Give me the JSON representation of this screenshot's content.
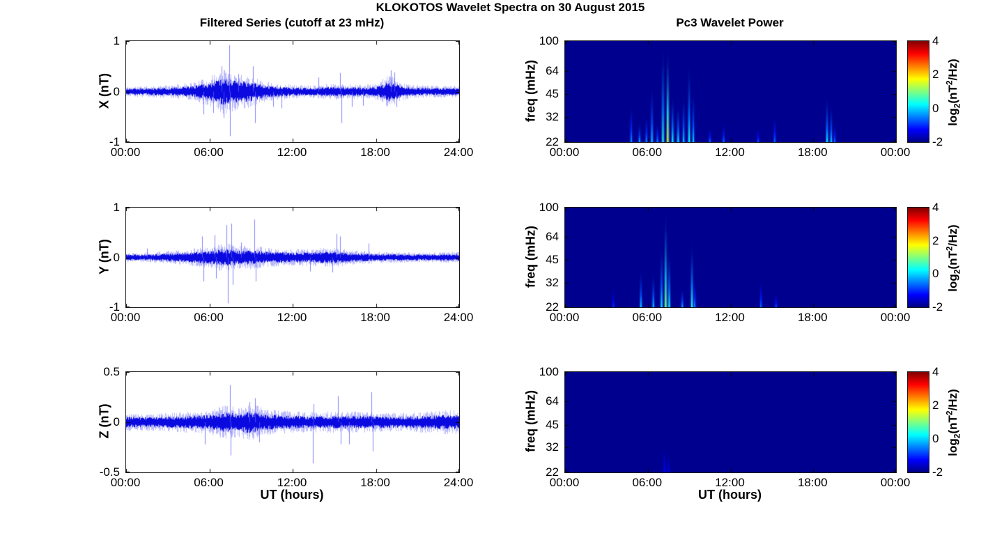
{
  "layout": {
    "suptitle": "KLOKOTOS Wavelet Spectra on 30 August 2015",
    "left_title": "Filtered Series (cutoff at 23 mHz)",
    "right_title": "Pc3 Wavelet Power",
    "xlabel": "UT (hours)",
    "colorbar": {
      "ticks": [
        "4",
        "2",
        "0",
        "-2"
      ],
      "tick_vals": [
        4,
        2,
        0,
        -2
      ],
      "range": [
        -2,
        4
      ],
      "label_parts": {
        "base": "log",
        "sub": "2",
        "mid": "(nT",
        "sup": "2",
        "end": "/Hz)"
      }
    },
    "colors": {
      "signal": "#0a0ae0",
      "signal_fuzz": "rgba(80,80,248,0.4)",
      "signal_spike": "rgba(90,90,250,0.75)",
      "spectro_bg": "#00008F",
      "axis": "#000000",
      "background": "#ffffff"
    }
  },
  "chart_data": [
    {
      "id": "x_series",
      "type": "line",
      "ylabel": "X (nT)",
      "xlim": [
        0,
        24
      ],
      "ylim": [
        -1,
        1
      ],
      "xticks": [
        "00:00",
        "06:00",
        "12:00",
        "18:00",
        "24:00"
      ],
      "xtick_vals": [
        0,
        6,
        12,
        18,
        24
      ],
      "yticks": [
        "1",
        "0",
        "-1"
      ],
      "ytick_vals": [
        1,
        0,
        -1
      ],
      "envelope_hourly_nT": [
        0.06,
        0.065,
        0.07,
        0.075,
        0.09,
        0.12,
        0.17,
        0.27,
        0.22,
        0.19,
        0.12,
        0.1,
        0.08,
        0.075,
        0.085,
        0.1,
        0.09,
        0.08,
        0.09,
        0.2,
        0.1,
        0.075,
        0.07,
        0.07,
        0.07
      ],
      "spikes": [
        [
          5.6,
          -0.45
        ],
        [
          6.3,
          -0.42
        ],
        [
          6.9,
          0.5
        ],
        [
          7.05,
          -0.52
        ],
        [
          7.45,
          0.92
        ],
        [
          7.5,
          -0.88
        ],
        [
          8.1,
          0.35
        ],
        [
          9.15,
          0.5
        ],
        [
          9.3,
          -0.62
        ],
        [
          10.6,
          -0.3
        ],
        [
          11.2,
          -0.33
        ],
        [
          13.9,
          0.28
        ],
        [
          15.45,
          0.37
        ],
        [
          15.55,
          -0.62
        ],
        [
          16.3,
          -0.3
        ],
        [
          17.1,
          -0.28
        ],
        [
          19.1,
          0.42
        ],
        [
          19.35,
          0.38
        ],
        [
          19.5,
          -0.3
        ]
      ],
      "seed": 11
    },
    {
      "id": "x_wavelet",
      "type": "heatmap",
      "ylabel": "freq (mHz)",
      "xlim": [
        0,
        24
      ],
      "ylim": [
        22,
        100
      ],
      "yscale": "log2",
      "xticks": [
        "00:00",
        "06:00",
        "12:00",
        "18:00",
        "00:00"
      ],
      "xtick_vals": [
        0,
        6,
        12,
        18,
        24
      ],
      "yticks": [
        "100",
        "64",
        "45",
        "32",
        "22"
      ],
      "ytick_vals": [
        100,
        64,
        45,
        32,
        22
      ],
      "power_events_t_fmax_intensity": [
        [
          4.8,
          40,
          0.35
        ],
        [
          5.4,
          30,
          0.4
        ],
        [
          5.9,
          34,
          0.35
        ],
        [
          6.3,
          55,
          0.45
        ],
        [
          6.7,
          30,
          0.35
        ],
        [
          7.1,
          100,
          0.6
        ],
        [
          7.45,
          95,
          0.95
        ],
        [
          7.8,
          46,
          0.55
        ],
        [
          8.2,
          40,
          0.5
        ],
        [
          8.6,
          46,
          0.45
        ],
        [
          9.0,
          76,
          0.55
        ],
        [
          9.3,
          50,
          0.45
        ],
        [
          10.5,
          28,
          0.3
        ],
        [
          11.5,
          30,
          0.3
        ],
        [
          14.0,
          28,
          0.25
        ],
        [
          15.2,
          34,
          0.3
        ],
        [
          19.0,
          46,
          0.5
        ],
        [
          19.3,
          40,
          0.45
        ],
        [
          19.55,
          30,
          0.3
        ]
      ]
    },
    {
      "id": "y_series",
      "type": "line",
      "ylabel": "Y (nT)",
      "xlim": [
        0,
        24
      ],
      "ylim": [
        -1,
        1
      ],
      "xticks": [
        "00:00",
        "06:00",
        "12:00",
        "18:00",
        "24:00"
      ],
      "xtick_vals": [
        0,
        6,
        12,
        18,
        24
      ],
      "yticks": [
        "1",
        "0",
        "-1"
      ],
      "ytick_vals": [
        1,
        0,
        -1
      ],
      "envelope_hourly_nT": [
        0.06,
        0.06,
        0.065,
        0.08,
        0.09,
        0.11,
        0.13,
        0.18,
        0.14,
        0.14,
        0.12,
        0.11,
        0.1,
        0.1,
        0.11,
        0.12,
        0.09,
        0.08,
        0.07,
        0.065,
        0.06,
        0.06,
        0.06,
        0.065,
        0.07
      ],
      "spikes": [
        [
          1.5,
          0.18
        ],
        [
          5.5,
          0.42
        ],
        [
          5.6,
          -0.48
        ],
        [
          6.4,
          0.45
        ],
        [
          6.5,
          -0.42
        ],
        [
          7.25,
          0.65
        ],
        [
          7.35,
          -0.92
        ],
        [
          7.6,
          0.68
        ],
        [
          7.7,
          -0.55
        ],
        [
          8.3,
          0.3
        ],
        [
          9.25,
          0.76
        ],
        [
          9.35,
          -0.48
        ],
        [
          13.3,
          -0.28
        ],
        [
          14.9,
          -0.3
        ],
        [
          15.2,
          0.47
        ],
        [
          15.45,
          0.42
        ],
        [
          17.5,
          0.28
        ]
      ],
      "seed": 22
    },
    {
      "id": "y_wavelet",
      "type": "heatmap",
      "ylabel": "freq (mHz)",
      "xlim": [
        0,
        24
      ],
      "ylim": [
        22,
        100
      ],
      "yscale": "log2",
      "xticks": [
        "00:00",
        "06:00",
        "12:00",
        "18:00",
        "00:00"
      ],
      "xtick_vals": [
        0,
        6,
        12,
        18,
        24
      ],
      "yticks": [
        "100",
        "64",
        "45",
        "32",
        "22"
      ],
      "ytick_vals": [
        100,
        64,
        45,
        32,
        22
      ],
      "power_events_t_fmax_intensity": [
        [
          3.5,
          30,
          0.2
        ],
        [
          5.5,
          40,
          0.45
        ],
        [
          6.4,
          38,
          0.45
        ],
        [
          7.0,
          60,
          0.5
        ],
        [
          7.3,
          100,
          0.8
        ],
        [
          7.55,
          55,
          0.55
        ],
        [
          8.5,
          30,
          0.4
        ],
        [
          9.2,
          62,
          0.6
        ],
        [
          9.4,
          35,
          0.35
        ],
        [
          14.2,
          34,
          0.3
        ],
        [
          15.3,
          28,
          0.25
        ]
      ]
    },
    {
      "id": "z_series",
      "type": "line",
      "ylabel": "Z (nT)",
      "xlim": [
        0,
        24
      ],
      "ylim": [
        -0.5,
        0.5
      ],
      "xticks": [
        "00:00",
        "06:00",
        "12:00",
        "18:00",
        "24:00"
      ],
      "xtick_vals": [
        0,
        6,
        12,
        18,
        24
      ],
      "yticks": [
        "0.5",
        "0",
        "-0.5"
      ],
      "ytick_vals": [
        0.5,
        0,
        -0.5
      ],
      "envelope_hourly_nT": [
        0.055,
        0.05,
        0.05,
        0.055,
        0.06,
        0.065,
        0.07,
        0.1,
        0.09,
        0.11,
        0.08,
        0.07,
        0.065,
        0.06,
        0.06,
        0.065,
        0.06,
        0.065,
        0.06,
        0.055,
        0.055,
        0.06,
        0.065,
        0.07,
        0.07
      ],
      "spikes": [
        [
          5.7,
          -0.22
        ],
        [
          7.5,
          0.37
        ],
        [
          7.55,
          -0.33
        ],
        [
          8.9,
          0.2
        ],
        [
          9.3,
          0.24
        ],
        [
          9.6,
          -0.2
        ],
        [
          13.5,
          -0.41
        ],
        [
          13.55,
          0.18
        ],
        [
          15.3,
          0.26
        ],
        [
          15.5,
          -0.22
        ],
        [
          16.1,
          -0.22
        ],
        [
          17.7,
          0.3
        ],
        [
          17.8,
          -0.29
        ]
      ],
      "seed": 33
    },
    {
      "id": "z_wavelet",
      "type": "heatmap",
      "ylabel": "freq (mHz)",
      "xlim": [
        0,
        24
      ],
      "ylim": [
        22,
        100
      ],
      "yscale": "log2",
      "xticks": [
        "00:00",
        "06:00",
        "12:00",
        "18:00",
        "00:00"
      ],
      "xtick_vals": [
        0,
        6,
        12,
        18,
        24
      ],
      "yticks": [
        "100",
        "64",
        "45",
        "32",
        "22"
      ],
      "ytick_vals": [
        100,
        64,
        45,
        32,
        22
      ],
      "power_events_t_fmax_intensity": [
        [
          7.2,
          35,
          0.12
        ],
        [
          7.5,
          30,
          0.1
        ]
      ]
    }
  ]
}
